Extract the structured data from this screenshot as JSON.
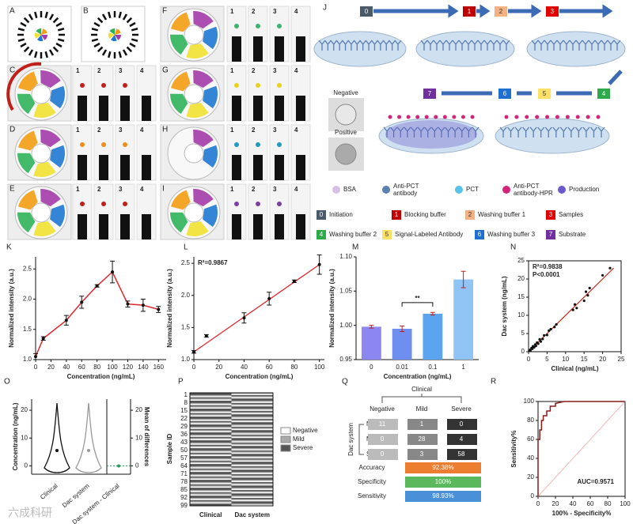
{
  "photo_panels": [
    "A",
    "B",
    "C",
    "D",
    "E",
    "F",
    "G",
    "H",
    "I"
  ],
  "strip_labels": [
    "1",
    "2",
    "3",
    "4"
  ],
  "schematic": {
    "panel": "J",
    "steps": [
      {
        "num": "0",
        "name": "Initiation",
        "color": "#4a5a6a"
      },
      {
        "num": "1",
        "name": "Blocking buffer",
        "color": "#c00000"
      },
      {
        "num": "2",
        "name": "Washing buffer 1",
        "color": "#f4b183"
      },
      {
        "num": "3",
        "name": "Samples",
        "color": "#e00000"
      },
      {
        "num": "4",
        "name": "Washing buffer 2",
        "color": "#2eaa4a"
      },
      {
        "num": "5",
        "name": "Signal-Labeled Antibody",
        "color": "#ffe066"
      },
      {
        "num": "6",
        "name": "Washing buffer 3",
        "color": "#1f6fd0"
      },
      {
        "num": "7",
        "name": "Substrate",
        "color": "#7030a0"
      }
    ],
    "tube_labels": [
      "Negative",
      "Positive"
    ],
    "legend": [
      "BSA",
      "Anti-PCT antibody",
      "PCT",
      "Anti-PCT antibody-HPR",
      "Production"
    ]
  },
  "chart_data": [
    {
      "type": "line",
      "panel": "K",
      "xlabel": "Concentration (ng/mL)",
      "ylabel": "Normalized intensity (a.u.)",
      "x": [
        0,
        10,
        40,
        60,
        80,
        100,
        120,
        140,
        160
      ],
      "y": [
        1.05,
        1.35,
        1.65,
        1.95,
        2.22,
        2.45,
        1.92,
        1.9,
        1.83
      ],
      "errors": [
        0.05,
        0.03,
        0.08,
        0.1,
        0.02,
        0.18,
        0.05,
        0.1,
        0.05
      ],
      "color": "#e0282e",
      "xlim": [
        0,
        170
      ],
      "xticks": [
        0,
        20,
        40,
        60,
        80,
        100,
        120,
        140,
        160
      ],
      "ylim": [
        1.0,
        2.7
      ],
      "yticks": [
        {
          "value": 1.0,
          "label": "1.0"
        },
        1.5,
        {
          "value": 2.0,
          "label": "2.0"
        },
        2.5
      ]
    },
    {
      "type": "scatter",
      "panel": "L",
      "xlabel": "Concentration (ng/mL)",
      "ylabel": "Normalized intensity (a.u.)",
      "annotations": [
        "R²=0.9867"
      ],
      "x": [
        0,
        10,
        40,
        60,
        80,
        100
      ],
      "y": [
        1.12,
        1.37,
        1.65,
        1.95,
        2.22,
        2.48
      ],
      "errors": [
        0.02,
        0.02,
        0.08,
        0.1,
        0.02,
        0.15
      ],
      "fit": {
        "x": [
          0,
          100
        ],
        "y": [
          1.12,
          2.48
        ]
      },
      "color": "#e0282e",
      "xlim": [
        0,
        104
      ],
      "xticks": [
        0,
        20,
        40,
        60,
        80,
        100
      ],
      "ylim": [
        1.0,
        2.6
      ],
      "yticks": [
        {
          "value": 1.0,
          "label": "1.0"
        },
        1.5,
        {
          "value": 2.0,
          "label": "2.0"
        },
        2.5
      ]
    },
    {
      "type": "bar",
      "panel": "M",
      "xlabel": "Concentration (ng/mL)",
      "ylabel": "Normalized intensity (a.u.)",
      "annotations": [
        "**"
      ],
      "categories": [
        "0",
        "0.01",
        "0.1",
        "1"
      ],
      "values": [
        0.998,
        0.995,
        1.017,
        1.067
      ],
      "errors": [
        0.002,
        0.004,
        0.002,
        0.012
      ],
      "colors": [
        "#8c86f0",
        "#6f8ff0",
        "#5aa4f0",
        "#8fc4f5"
      ],
      "ylim": [
        0.95,
        1.1
      ],
      "yticks": [
        0.95,
        {
          "value": 1.0,
          "label": "1.00"
        },
        1.05,
        {
          "value": 1.1,
          "label": "1.10"
        }
      ]
    },
    {
      "type": "scatter",
      "panel": "N",
      "xlabel": "Clinical (ng/mL)",
      "ylabel": "Dac system (ng/mL)",
      "annotations": [
        "R²=0.9838",
        "P<0.0001"
      ],
      "x": [
        0.2,
        0.4,
        0.5,
        0.8,
        1,
        1.2,
        1.5,
        1.8,
        2,
        2.3,
        2.6,
        3,
        3.3,
        3.8,
        4.2,
        5,
        5.5,
        6,
        7,
        7.5,
        12,
        12.5,
        13,
        15,
        15.5,
        16,
        16.5,
        20,
        22
      ],
      "y": [
        0.3,
        0.5,
        0.3,
        1,
        0.8,
        1.5,
        1.2,
        2,
        1.6,
        2.5,
        2.2,
        3.4,
        2.8,
        3.5,
        4.5,
        4.6,
        5.8,
        6.2,
        6.8,
        7.5,
        11.5,
        13,
        12,
        14,
        16.5,
        15.5,
        17.5,
        21,
        23
      ],
      "fit": {
        "x": [
          0,
          23
        ],
        "y": [
          0,
          23
        ]
      },
      "color": "#c0392b",
      "xlim": [
        0,
        25
      ],
      "xticks": [
        0,
        5,
        10,
        15,
        20,
        25
      ],
      "ylim": [
        0,
        25
      ],
      "yticks": [
        0,
        5,
        10,
        15,
        20,
        25
      ]
    },
    {
      "type": "violin",
      "panel": "O",
      "ylabel": "Concentration (ng/mL)",
      "y2label": "Mean of differences",
      "categories": [
        "Clinical",
        "Dac system",
        "Dac system - Clinical"
      ],
      "ylim": [
        -3,
        24
      ],
      "yticks": [
        0,
        10,
        20
      ],
      "y2lim": [
        -3,
        24
      ],
      "y2ticks": [
        0,
        10,
        20
      ]
    },
    {
      "type": "step",
      "panel": "R",
      "xlabel": "100% - Specificity%",
      "ylabel": "Sensitivity%",
      "annotations": [
        "AUC=0.9571"
      ],
      "x": [
        0,
        0,
        2,
        2,
        4,
        4,
        6,
        6,
        10,
        10,
        14,
        14,
        20,
        20,
        30,
        100
      ],
      "y": [
        0,
        60,
        60,
        70,
        70,
        80,
        80,
        85,
        85,
        90,
        90,
        95,
        95,
        98,
        100,
        100
      ],
      "color": "#8b1a1a",
      "xlim": [
        0,
        100
      ],
      "xticks": [
        0,
        20,
        40,
        60,
        80,
        100
      ],
      "ylim": [
        0,
        100
      ],
      "yticks": [
        0,
        20,
        40,
        60,
        80,
        100
      ]
    }
  ],
  "panel_p": {
    "panel": "P",
    "ylabel": "Sample ID",
    "sample_ids": [
      "1",
      "8",
      "15",
      "22",
      "29",
      "36",
      "43",
      "50",
      "57",
      "64",
      "71",
      "78",
      "85",
      "92",
      "99"
    ],
    "columns": [
      "Clinical",
      "Dac system"
    ],
    "legend": [
      "Negative",
      "Mild",
      "Severe"
    ],
    "legend_colors": [
      "#ffffff",
      "#aaaaaa",
      "#555555"
    ]
  },
  "table_q": {
    "panel": "Q",
    "header": "Clinical",
    "row_group": "Dac system",
    "columns": [
      "Negative",
      "Mild",
      "Severe"
    ],
    "rows": [
      "Negative",
      "Mild",
      "Severe"
    ],
    "cells": [
      [
        "11",
        "1",
        "0"
      ],
      [
        "0",
        "28",
        "4"
      ],
      [
        "0",
        "3",
        "58"
      ]
    ],
    "metrics": [
      {
        "name": "Accuracy",
        "value": "92.38%",
        "color": "#ed7d31"
      },
      {
        "name": "Specificity",
        "value": "100%",
        "color": "#5cb85c"
      },
      {
        "name": "Sensitivity",
        "value": "98.93%",
        "color": "#4a90d9"
      }
    ]
  },
  "watermark": "六成科研"
}
